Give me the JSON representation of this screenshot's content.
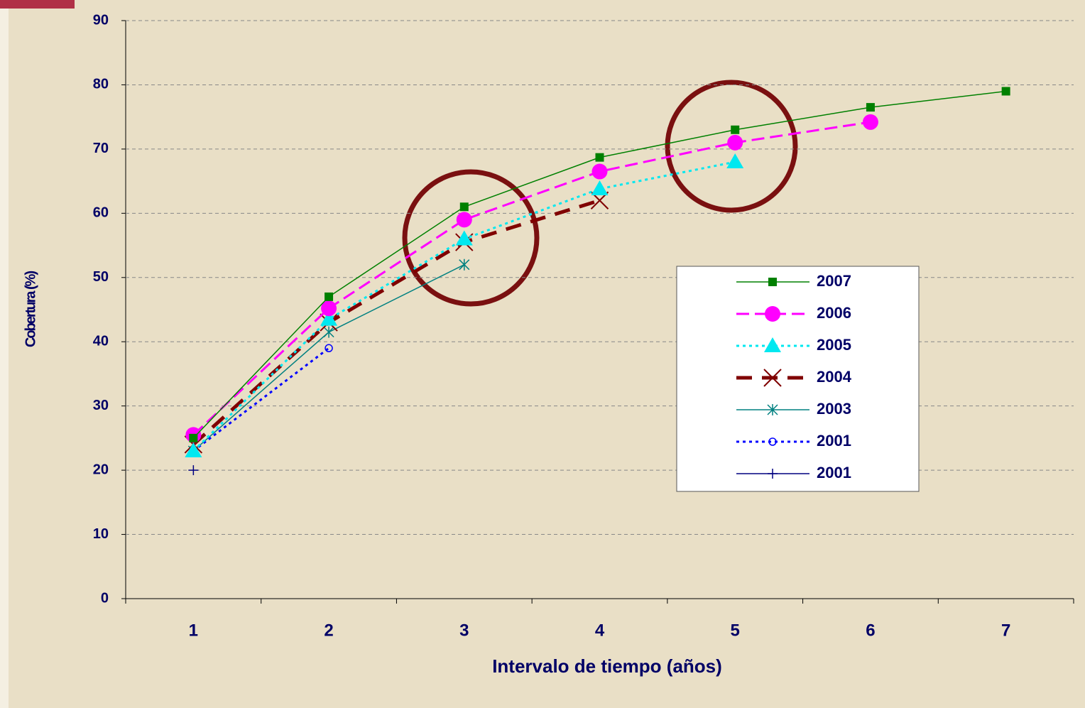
{
  "chart_data": {
    "type": "line",
    "xlabel": "Intervalo de tiempo (años)",
    "ylabel": "Cobertura (%)",
    "categories": [
      1,
      2,
      3,
      4,
      5,
      6,
      7
    ],
    "ylim": [
      0,
      90
    ],
    "yticks": [
      0,
      10,
      20,
      30,
      40,
      50,
      60,
      70,
      80,
      90
    ],
    "grid": true,
    "series": [
      {
        "name": "2007",
        "color": "#008000",
        "marker": "square",
        "dash": "solid",
        "values": [
          25,
          47,
          61,
          68.7,
          73,
          76.5,
          79
        ]
      },
      {
        "name": "2006",
        "color": "#ff00ff",
        "marker": "circle",
        "dash": "dash",
        "values": [
          25.5,
          45.2,
          59,
          66.5,
          71,
          74.2,
          null
        ]
      },
      {
        "name": "2005",
        "color": "#00e8f0",
        "marker": "triangle",
        "dash": "dot",
        "values": [
          23,
          43.5,
          56,
          63.8,
          68,
          null,
          null
        ]
      },
      {
        "name": "2004",
        "color": "#800000",
        "marker": "x",
        "dash": "longdash",
        "values": [
          24,
          43,
          55.5,
          62,
          null,
          null,
          null
        ]
      },
      {
        "name": "2003",
        "color": "#008080",
        "marker": "star",
        "dash": "solid",
        "values": [
          23,
          41.5,
          52,
          null,
          null,
          null,
          null
        ]
      },
      {
        "name": "2001",
        "color": "#0000ff",
        "marker": "opencircle",
        "dash": "dot",
        "values": [
          23,
          39,
          null,
          null,
          null,
          null,
          null
        ]
      },
      {
        "name": "2001",
        "color": "#000080",
        "marker": "plus",
        "dash": "solid",
        "values": [
          20,
          null,
          null,
          null,
          null,
          null,
          null
        ]
      }
    ]
  }
}
